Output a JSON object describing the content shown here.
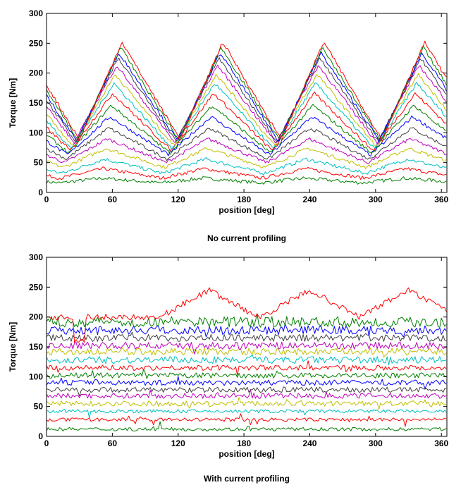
{
  "chart_data": [
    {
      "type": "line",
      "caption": "No current profiling",
      "xlabel": "position [deg]",
      "ylabel": "Torque [Nm]",
      "xlim": [
        0,
        365
      ],
      "ylim": [
        0,
        300
      ],
      "xticks": [
        0,
        60,
        120,
        180,
        240,
        300,
        360
      ],
      "yticks": [
        0,
        50,
        100,
        150,
        200,
        250,
        300
      ],
      "grid": false,
      "legend": "none",
      "trace_style": "torque ripple: peaks near 50, 145, 235, 330 deg; ripple amplitude grows with load",
      "series": [
        {
          "color": "#008000",
          "mean": 20,
          "ripple": 4
        },
        {
          "color": "#ff0000",
          "mean": 32,
          "ripple": 8
        },
        {
          "color": "#00bfbf",
          "mean": 44,
          "ripple": 12
        },
        {
          "color": "#bfbf00",
          "mean": 58,
          "ripple": 16
        },
        {
          "color": "#bf00bf",
          "mean": 70,
          "ripple": 20
        },
        {
          "color": "#404040",
          "mean": 82,
          "ripple": 26
        },
        {
          "color": "#0000ff",
          "mean": 95,
          "ripple": 32
        },
        {
          "color": "#008000",
          "mean": 106,
          "ripple": 40
        },
        {
          "color": "#ff0000",
          "mean": 118,
          "ripple": 48
        },
        {
          "color": "#00bfbf",
          "mean": 128,
          "ripple": 55
        },
        {
          "color": "#bfbf00",
          "mean": 138,
          "ripple": 60
        },
        {
          "color": "#bf00bf",
          "mean": 148,
          "ripple": 65
        },
        {
          "color": "#404040",
          "mean": 155,
          "ripple": 70
        },
        {
          "color": "#0000ff",
          "mean": 160,
          "ripple": 74
        },
        {
          "color": "#008000",
          "mean": 165,
          "ripple": 78
        },
        {
          "color": "#ff0000",
          "mean": 170,
          "ripple": 82
        }
      ]
    },
    {
      "type": "line",
      "caption": "With current profiling",
      "xlabel": "position [deg]",
      "ylabel": "Torque [Nm]",
      "xlim": [
        0,
        365
      ],
      "ylim": [
        0,
        300
      ],
      "xticks": [
        0,
        60,
        120,
        180,
        240,
        300,
        360
      ],
      "yticks": [
        0,
        50,
        100,
        150,
        200,
        250,
        300
      ],
      "grid": false,
      "legend": "none",
      "trace_style": "flat traces with small noise; top trace keeps peaks near 148, 240, 330 deg",
      "series": [
        {
          "color": "#008000",
          "mean": 12,
          "ripple": 2
        },
        {
          "color": "#ff0000",
          "mean": 28,
          "ripple": 2
        },
        {
          "color": "#00bfbf",
          "mean": 42,
          "ripple": 2
        },
        {
          "color": "#bfbf00",
          "mean": 55,
          "ripple": 3
        },
        {
          "color": "#bf00bf",
          "mean": 68,
          "ripple": 3
        },
        {
          "color": "#404040",
          "mean": 78,
          "ripple": 3
        },
        {
          "color": "#0000ff",
          "mean": 90,
          "ripple": 3
        },
        {
          "color": "#008000",
          "mean": 102,
          "ripple": 3
        },
        {
          "color": "#ff0000",
          "mean": 115,
          "ripple": 3
        },
        {
          "color": "#00bfbf",
          "mean": 128,
          "ripple": 4
        },
        {
          "color": "#bfbf00",
          "mean": 142,
          "ripple": 4
        },
        {
          "color": "#bf00bf",
          "mean": 152,
          "ripple": 4
        },
        {
          "color": "#404040",
          "mean": 165,
          "ripple": 4
        },
        {
          "color": "#0000ff",
          "mean": 178,
          "ripple": 5
        },
        {
          "color": "#008000",
          "mean": 192,
          "ripple": 6
        },
        {
          "color": "#ff0000",
          "mean": 200,
          "ripple": 45
        }
      ]
    }
  ]
}
